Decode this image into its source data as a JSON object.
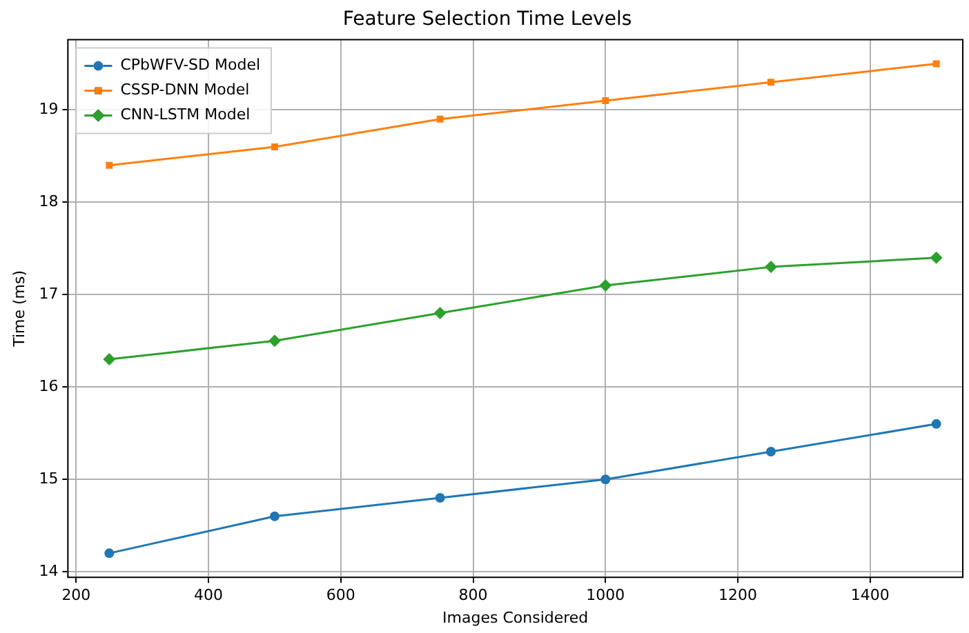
{
  "chart_data": {
    "type": "line",
    "title": "Feature Selection Time Levels",
    "xlabel": "Images Considered",
    "ylabel": "Time (ms)",
    "x": [
      250,
      500,
      750,
      1000,
      1250,
      1500
    ],
    "series": [
      {
        "name": "CPbWFV-SD Model",
        "color": "#1f77b4",
        "marker": "circle",
        "values": [
          14.2,
          14.6,
          14.8,
          15.0,
          15.3,
          15.6
        ]
      },
      {
        "name": "CSSP-DNN Model",
        "color": "#ff7f0e",
        "marker": "square",
        "values": [
          18.4,
          18.6,
          18.9,
          19.1,
          19.3,
          19.5
        ]
      },
      {
        "name": "CNN-LSTM Model",
        "color": "#2ca02c",
        "marker": "diamond",
        "values": [
          16.3,
          16.5,
          16.8,
          17.1,
          17.3,
          17.4
        ]
      }
    ],
    "xlim": [
      187.5,
      1540
    ],
    "xticks": [
      200,
      400,
      600,
      800,
      1000,
      1200,
      1400
    ],
    "ylim": [
      13.94,
      19.76
    ],
    "yticks": [
      14,
      15,
      16,
      17,
      18,
      19
    ],
    "grid": true,
    "legend": "top left"
  }
}
